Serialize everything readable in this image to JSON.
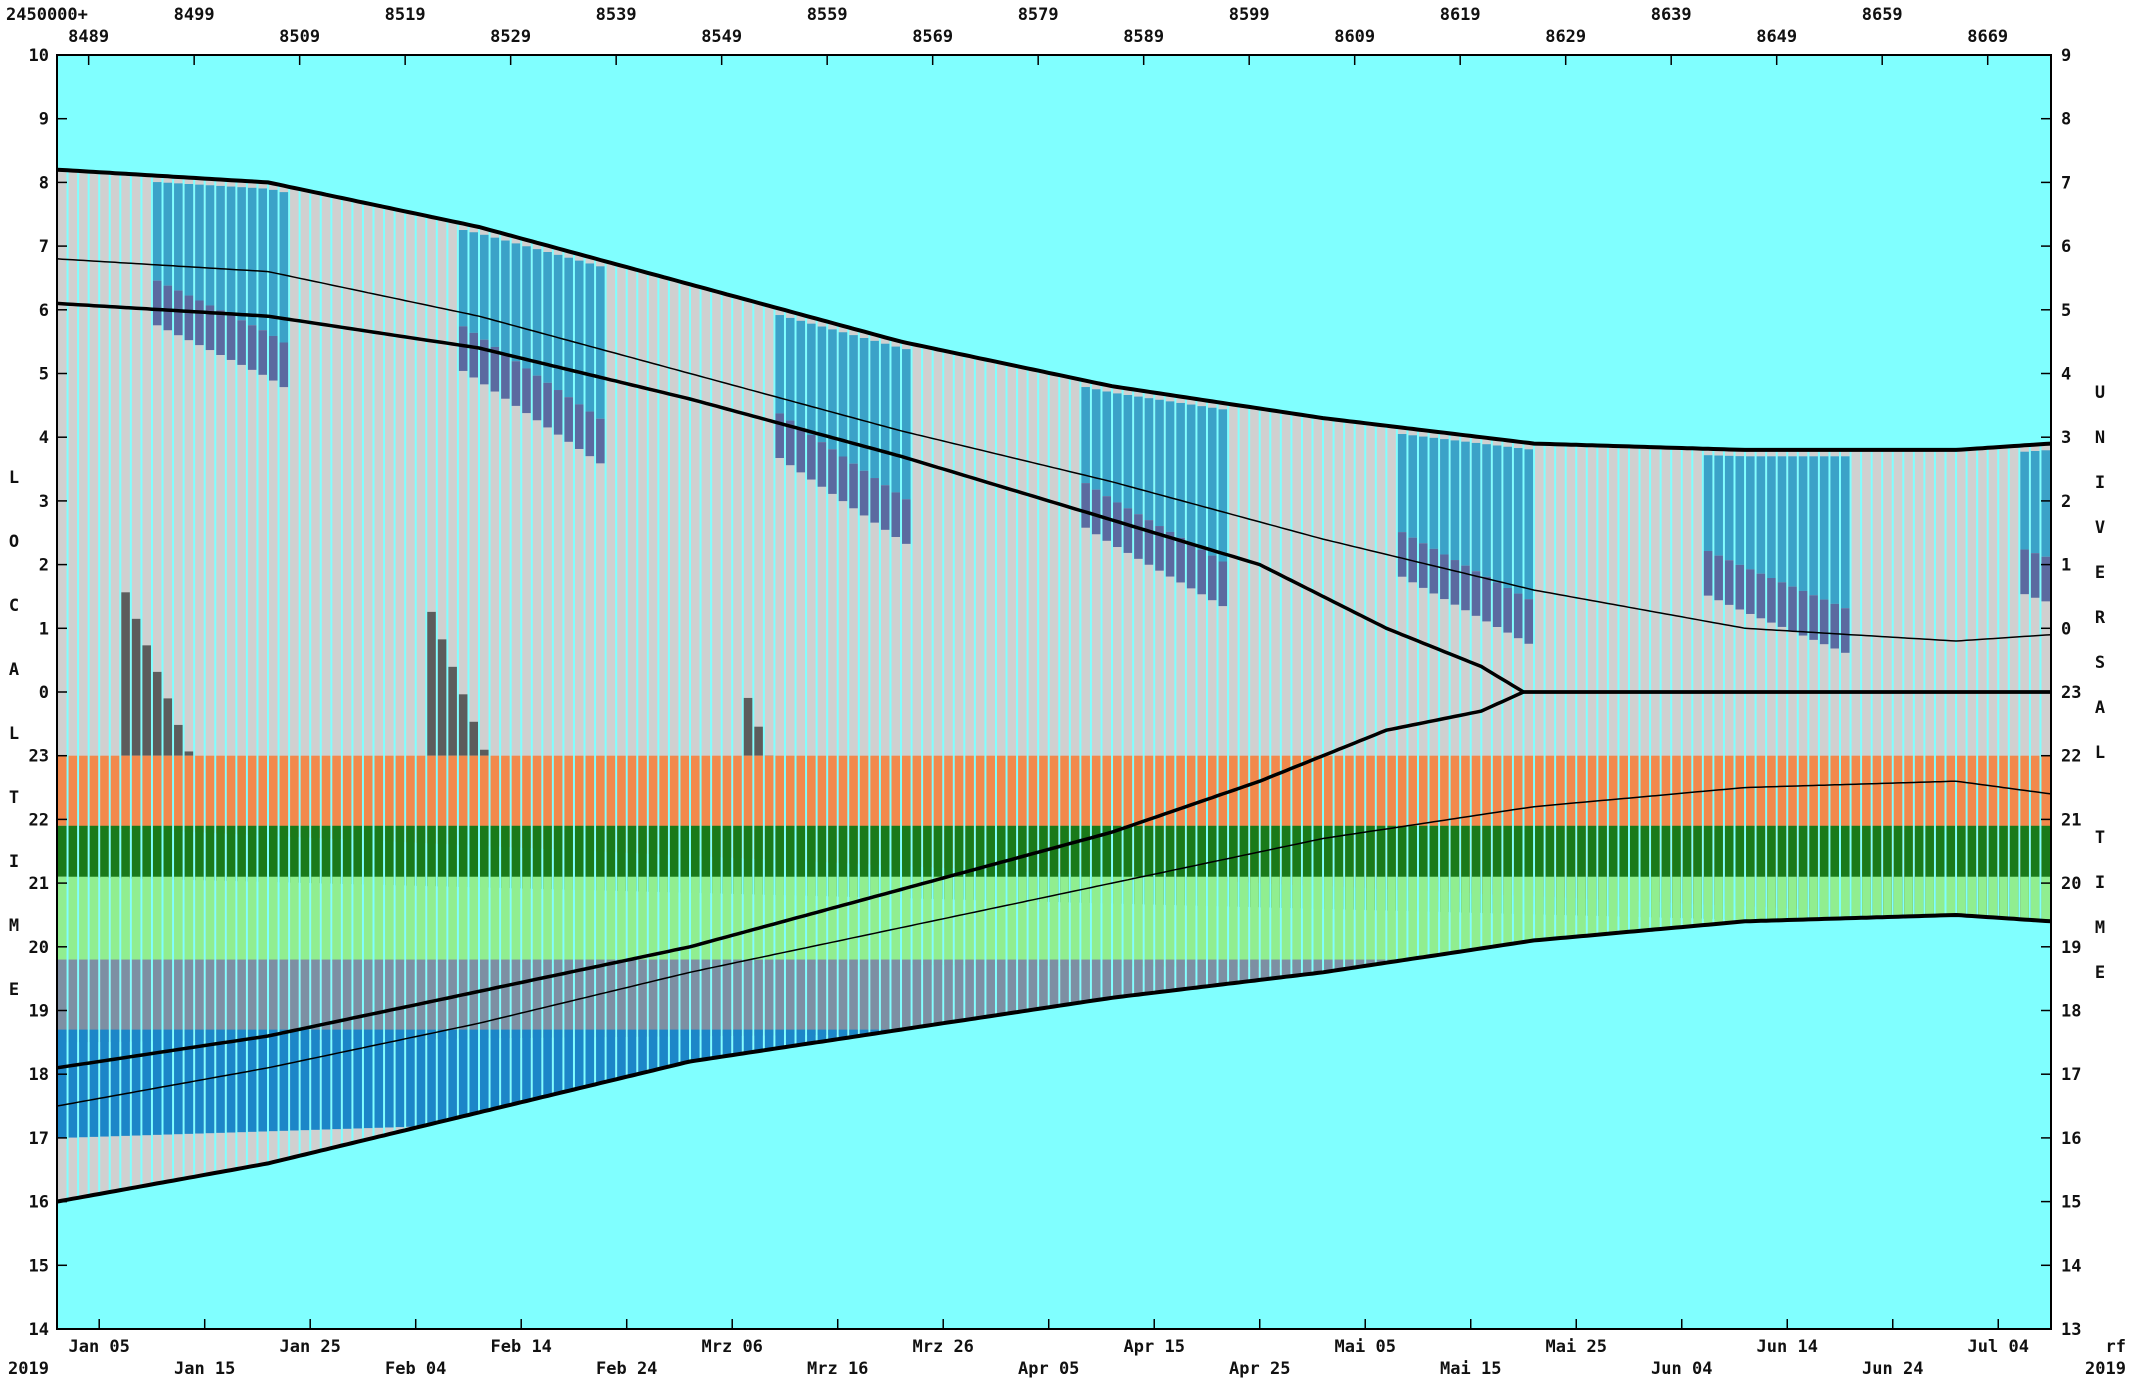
{
  "chart_data": {
    "type": "area",
    "top_axis": {
      "prefix": "2450000+",
      "jd_labels_upper": [
        "8499",
        "8519",
        "8539",
        "8559",
        "8579",
        "8599",
        "8619",
        "8639",
        "8659"
      ],
      "jd_labels_lower": [
        "8489",
        "8509",
        "8529",
        "8549",
        "8569",
        "8589",
        "8609",
        "8629",
        "8649",
        "8669"
      ],
      "jd_start": 8486.0,
      "jd_end": 8675.0
    },
    "bottom_axis": {
      "year_left": "2019",
      "year_right": "2019",
      "corner_label": "rf",
      "date_labels_upper": [
        "Jan 05",
        "Jan 25",
        "Feb 14",
        "Mrz 06",
        "Mrz 26",
        "Apr 15",
        "Mai 05",
        "Mai 25",
        "Jun 14",
        "Jul 04"
      ],
      "date_labels_lower": [
        "Jan 15",
        "Feb 04",
        "Feb 24",
        "Mrz 16",
        "Apr 05",
        "Apr 25",
        "Mai 15",
        "Jun 04",
        "Jun 24"
      ]
    },
    "left_axis": {
      "label": "LOCAL TIME",
      "ticks": [
        "10",
        "9",
        "8",
        "7",
        "6",
        "5",
        "4",
        "3",
        "2",
        "1",
        "0",
        "23",
        "22",
        "21",
        "20",
        "19",
        "18",
        "17",
        "16",
        "15",
        "14"
      ],
      "range_hours": [
        14,
        34
      ]
    },
    "right_axis": {
      "label": "UNIVERSAL TIME",
      "ticks": [
        "9",
        "8",
        "7",
        "6",
        "5",
        "4",
        "3",
        "2",
        "1",
        "0",
        "23",
        "22",
        "21",
        "20",
        "19",
        "18",
        "17",
        "16",
        "15",
        "14",
        "13"
      ]
    },
    "curves_local_hours": {
      "x_jd": [
        8486,
        8506,
        8526,
        8546,
        8566,
        8586,
        8606,
        8626,
        8646,
        8666,
        8675
      ],
      "sunrise": [
        32.2,
        32.0,
        31.3,
        30.4,
        29.5,
        28.8,
        28.3,
        27.9,
        27.8,
        27.8,
        27.9
      ],
      "sunset": [
        16.0,
        16.6,
        17.4,
        18.2,
        18.7,
        19.2,
        19.6,
        20.1,
        20.4,
        20.5,
        20.4
      ],
      "civil_dawn": [
        30.8,
        30.6,
        29.9,
        29.0,
        28.1,
        27.3,
        26.4,
        25.6,
        25.0,
        24.8,
        24.9
      ],
      "civil_dusk": [
        17.5,
        18.1,
        18.8,
        19.6,
        20.3,
        21.0,
        21.7,
        22.2,
        22.5,
        22.6,
        22.4
      ]
    },
    "moon_curve_local_hours": {
      "x_jd": [
        8486,
        8506,
        8526,
        8546,
        8566,
        8586,
        8600,
        8612,
        8621,
        8625,
        8630
      ],
      "rise": [
        30.1,
        29.9,
        29.4,
        28.6,
        27.7,
        26.7,
        26.0,
        25.0,
        24.4,
        24.0,
        24.0
      ],
      "set": [
        18.1,
        18.6,
        19.3,
        20.0,
        20.9,
        21.8,
        22.6,
        23.4,
        23.7,
        24.0,
        24.0
      ]
    },
    "bands_local_hours": [
      {
        "name": "orange",
        "color": "#f2894c",
        "top": 23.0,
        "bottom_at_start": 21.9,
        "bottom_at_end": 20.4
      },
      {
        "name": "dark-green",
        "color": "#1a7a1a",
        "top": 21.9,
        "bottom_at_start": 21.1,
        "bottom_at_end": 20.3
      },
      {
        "name": "light-green",
        "color": "#90ee90",
        "top": 21.1,
        "bottom_at_start": 19.8,
        "bottom_at_end": 19.6
      },
      {
        "name": "grey-blue",
        "color": "#7d8fa3",
        "top": 19.8,
        "bottom_at_start": 18.5,
        "bottom_at_end": 18.8
      },
      {
        "name": "blue",
        "color": "#1c86c8",
        "top": 18.7,
        "bottom_at_start": 17.0,
        "bottom_at_end": 18.0
      }
    ],
    "colors": {
      "sky": "#80ffff",
      "night_light": "#d0d0d0",
      "night_dark": "#5c5c5c",
      "dawn_blue": "#3ba2c8",
      "dawn_slate": "#5b6aa0",
      "frame": "#000000"
    },
    "moon_cycle_days": 29.53,
    "first_new_moon_jd": 8481.0
  }
}
